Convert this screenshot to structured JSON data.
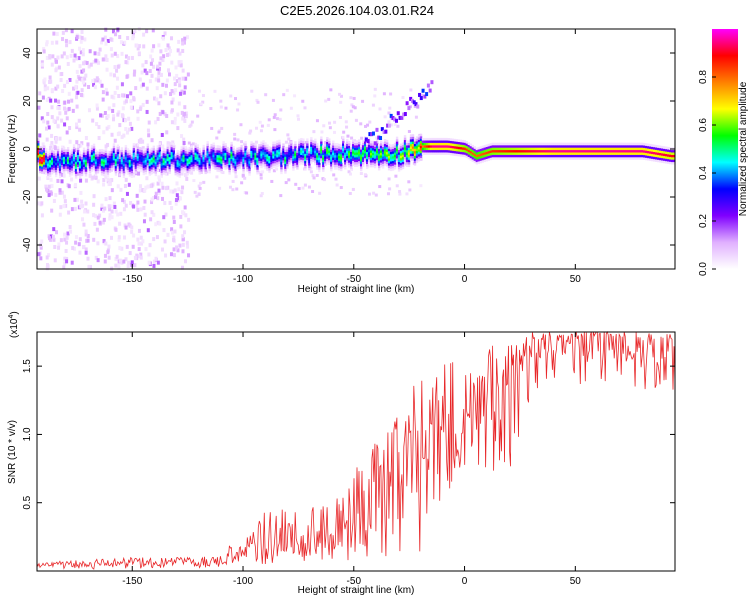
{
  "page_title": "C2E5.2026.104.03.01.R24",
  "chart_data": [
    {
      "type": "heatmap",
      "title": "C2E5.2026.104.03.01.R24",
      "xlabel": "Height of straight line (km)",
      "ylabel": "Frequency (Hz)",
      "xlim": [
        -193,
        95
      ],
      "ylim": [
        -50,
        50
      ],
      "x_ticks": [
        -150,
        -100,
        -50,
        0,
        50
      ],
      "x_tick_labels": [
        "-150",
        "-100",
        "-50",
        "0",
        "50"
      ],
      "y_ticks": [
        -40,
        -20,
        0,
        20,
        40
      ],
      "y_tick_labels": [
        "-40",
        "-20",
        "0",
        "20",
        "40"
      ],
      "colorbar": {
        "label": "Normalized spectral amplitude",
        "range": [
          0,
          1
        ],
        "ticks": [
          0.0,
          0.2,
          0.4,
          0.6,
          0.8
        ],
        "tick_labels": [
          "0.0",
          "0.2",
          "0.4",
          "0.6",
          "0.8"
        ],
        "colors": [
          "#ffffff",
          "#e0b0ff",
          "#8000ff",
          "#0000ff",
          "#00ffff",
          "#00ff00",
          "#ffff00",
          "#ff8000",
          "#ff0000",
          "#ff00ff"
        ]
      },
      "ridge": [
        {
          "x": -190,
          "freq": -5,
          "amp": 0.4
        },
        {
          "x": -150,
          "freq": -5,
          "amp": 0.4
        },
        {
          "x": -100,
          "freq": -4,
          "amp": 0.4
        },
        {
          "x": -60,
          "freq": -2,
          "amp": 0.45
        },
        {
          "x": -30,
          "freq": -2,
          "amp": 0.5
        },
        {
          "x": -20,
          "freq": 1,
          "amp": 0.75
        },
        {
          "x": -15,
          "freq": 1,
          "amp": 0.95
        },
        {
          "x": -8,
          "freq": 1,
          "amp": 0.95
        },
        {
          "x": 0,
          "freq": 0,
          "amp": 0.85
        },
        {
          "x": 5,
          "freq": -3,
          "amp": 0.8
        },
        {
          "x": 12,
          "freq": -1,
          "amp": 0.85
        },
        {
          "x": 40,
          "freq": -1,
          "amp": 0.95
        },
        {
          "x": 80,
          "freq": -1,
          "amp": 0.95
        },
        {
          "x": 93,
          "freq": -3,
          "amp": 0.9
        }
      ]
    },
    {
      "type": "line",
      "xlabel": "Height of straight line (km)",
      "ylabel": "SNR (10 * v/v)",
      "y_scale_label": "(x10",
      "y_scale_exp": "4",
      "y_scale_close": ")",
      "xlim": [
        -193,
        95
      ],
      "ylim": [
        0,
        1.75
      ],
      "x_ticks": [
        -150,
        -100,
        -50,
        0,
        50
      ],
      "x_tick_labels": [
        "-150",
        "-100",
        "-50",
        "0",
        "50"
      ],
      "y_ticks": [
        0.5,
        1.0,
        1.5
      ],
      "y_tick_labels": [
        "0.5",
        "1.0",
        "1.5"
      ],
      "series": [
        {
          "name": "SNR",
          "color": "#e8282a",
          "x": [
            -193,
            -175,
            -150,
            -130,
            -120,
            -110,
            -100,
            -95,
            -90,
            -85,
            -80,
            -75,
            -70,
            -65,
            -60,
            -55,
            -50,
            -45,
            -40,
            -35,
            -30,
            -25,
            -20,
            -18,
            -15,
            -10,
            -5,
            0,
            5,
            10,
            15,
            20,
            25,
            30,
            40,
            50,
            55,
            60,
            70,
            80,
            90,
            95
          ],
          "mean": [
            0.04,
            0.05,
            0.06,
            0.06,
            0.06,
            0.08,
            0.13,
            0.16,
            0.2,
            0.22,
            0.23,
            0.22,
            0.22,
            0.23,
            0.27,
            0.3,
            0.35,
            0.42,
            0.48,
            0.58,
            0.65,
            0.72,
            0.82,
            0.85,
            0.95,
            1.05,
            1.08,
            1.12,
            1.15,
            1.22,
            1.32,
            1.45,
            1.55,
            1.62,
            1.66,
            1.68,
            1.68,
            1.68,
            1.66,
            1.62,
            1.58,
            1.58
          ],
          "max": [
            0.06,
            0.08,
            0.1,
            0.1,
            0.1,
            0.15,
            0.25,
            0.3,
            0.45,
            0.45,
            0.45,
            0.5,
            0.45,
            0.5,
            0.5,
            0.6,
            0.8,
            0.9,
            0.95,
            1.05,
            1.15,
            1.25,
            1.55,
            1.3,
            1.35,
            1.55,
            1.6,
            1.55,
            1.6,
            1.73,
            1.6,
            1.65,
            1.7,
            1.73,
            1.74,
            1.74,
            1.74,
            1.74,
            1.74,
            1.74,
            1.74,
            1.74
          ],
          "min": [
            0.01,
            0.01,
            0.02,
            0.02,
            0.02,
            0.03,
            0.04,
            0.04,
            0.05,
            0.05,
            0.06,
            0.05,
            0.06,
            0.06,
            0.06,
            0.07,
            0.08,
            0.08,
            0.1,
            0.1,
            0.12,
            0.15,
            0.04,
            0.25,
            0.35,
            0.5,
            0.6,
            0.7,
            0.7,
            0.65,
            0.75,
            0.55,
            1.0,
            1.3,
            1.4,
            1.45,
            1.2,
            1.4,
            1.35,
            1.3,
            1.3,
            1.3
          ]
        }
      ]
    }
  ]
}
